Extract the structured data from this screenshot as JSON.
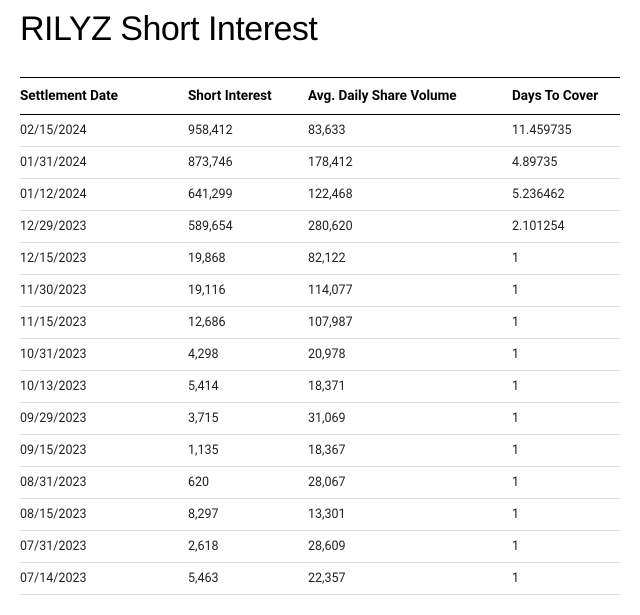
{
  "title": "RILYZ Short Interest",
  "table": {
    "columns": [
      "Settlement Date",
      "Short Interest",
      "Avg. Daily Share Volume",
      "Days To Cover"
    ],
    "rows": [
      [
        "02/15/2024",
        "958,412",
        "83,633",
        "11.459735"
      ],
      [
        "01/31/2024",
        "873,746",
        "178,412",
        "4.89735"
      ],
      [
        "01/12/2024",
        "641,299",
        "122,468",
        "5.236462"
      ],
      [
        "12/29/2023",
        "589,654",
        "280,620",
        "2.101254"
      ],
      [
        "12/15/2023",
        "19,868",
        "82,122",
        "1"
      ],
      [
        "11/30/2023",
        "19,116",
        "114,077",
        "1"
      ],
      [
        "11/15/2023",
        "12,686",
        "107,987",
        "1"
      ],
      [
        "10/31/2023",
        "4,298",
        "20,978",
        "1"
      ],
      [
        "10/13/2023",
        "5,414",
        "18,371",
        "1"
      ],
      [
        "09/29/2023",
        "3,715",
        "31,069",
        "1"
      ],
      [
        "09/15/2023",
        "1,135",
        "18,367",
        "1"
      ],
      [
        "08/31/2023",
        "620",
        "28,067",
        "1"
      ],
      [
        "08/15/2023",
        "8,297",
        "13,301",
        "1"
      ],
      [
        "07/31/2023",
        "2,618",
        "28,609",
        "1"
      ],
      [
        "07/14/2023",
        "5,463",
        "22,357",
        "1"
      ]
    ]
  }
}
